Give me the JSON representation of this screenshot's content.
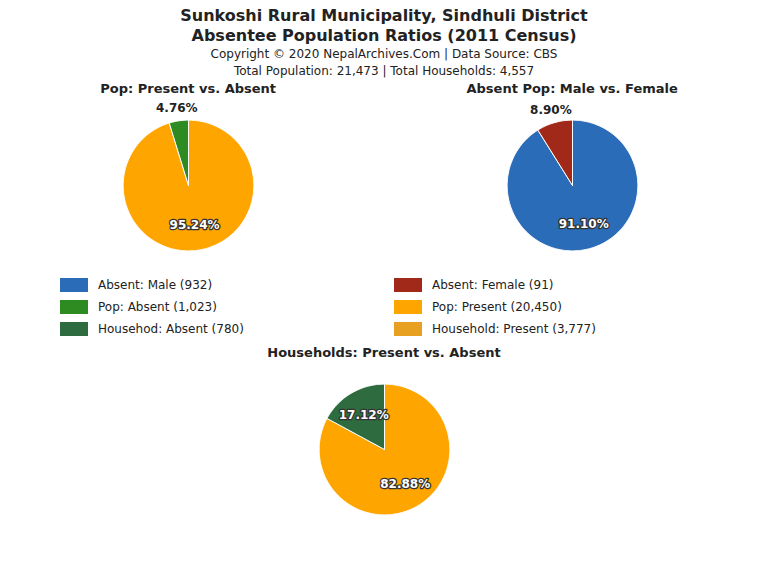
{
  "title": "Sunkoshi Rural Municipality, Sindhuli District",
  "subtitle": "Absentee Population Ratios (2011 Census)",
  "annotations": [
    "Copyright © 2020 NepalArchives.Com | Data Source: CBS",
    "Total Population: 21,473 | Total Households: 4,557"
  ],
  "legend_entries": [
    {
      "name": "Absent: Male (932)",
      "color": "#2B6CB8"
    },
    {
      "name": "Absent: Female (91)",
      "color": "#A0291A"
    },
    {
      "name": "Pop: Absent (1,023)",
      "color": "#2E8B22"
    },
    {
      "name": "Pop: Present (20,450)",
      "color": "#FFA500"
    },
    {
      "name": "Househod: Absent (780)",
      "color": "#2E6B3E"
    },
    {
      "name": "Household: Present (3,777)",
      "color": "#E8A020"
    }
  ],
  "chart_data": [
    {
      "type": "pie",
      "title": "Pop: Present vs. Absent",
      "values": [
        95.24,
        4.76
      ],
      "value_labels": [
        "95.24%",
        "4.76%"
      ],
      "colors": [
        "#FFA500",
        "#2E8B22"
      ],
      "data_labels": true
    },
    {
      "type": "pie",
      "title": "Absent Pop: Male vs. Female",
      "values": [
        91.1,
        8.9
      ],
      "value_labels": [
        "91.10%",
        "8.90%"
      ],
      "colors": [
        "#2B6CB8",
        "#A0291A"
      ],
      "data_labels": true
    },
    {
      "type": "pie",
      "title": "Households: Present vs. Absent",
      "values": [
        82.88,
        17.12
      ],
      "value_labels": [
        "82.88%",
        "17.12%"
      ],
      "colors": [
        "#FFA500",
        "#2E6B3E"
      ],
      "data_labels": true
    }
  ]
}
